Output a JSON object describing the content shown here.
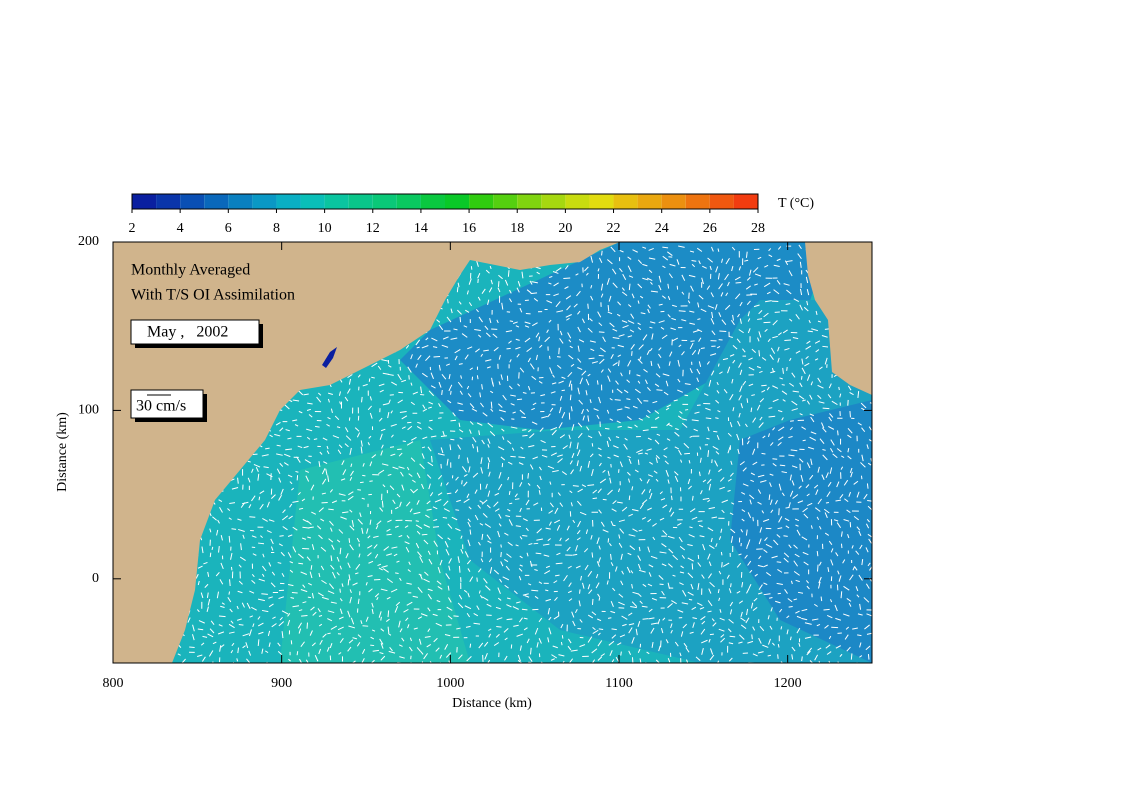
{
  "chart_data": {
    "type": "vector_map",
    "xlabel": "Distance (km)",
    "ylabel": "Distance (km)",
    "xlim": [
      800,
      1250
    ],
    "ylim": [
      -50,
      200
    ],
    "xticks": [
      800,
      900,
      1000,
      1100,
      1200
    ],
    "yticks": [
      0,
      100,
      200
    ],
    "annotations": [
      "Monthly Averaged",
      "With T/S OI Assimilation",
      "May ,   2002",
      "30 cm/s"
    ],
    "colorbar": {
      "label": "T (°C)",
      "levels": [
        2,
        3,
        4,
        5,
        6,
        7,
        8,
        9,
        10,
        11,
        12,
        13,
        14,
        15,
        16,
        17,
        18,
        19,
        20,
        21,
        22,
        23,
        24,
        25,
        26,
        27,
        28
      ],
      "ticks": [
        2,
        4,
        6,
        8,
        10,
        12,
        14,
        16,
        18,
        20,
        22,
        24,
        26,
        28
      ],
      "colors": [
        "#0a1fa0",
        "#0a35aa",
        "#0a4fb4",
        "#0a68bb",
        "#0a80c0",
        "#0a98c5",
        "#0aafc4",
        "#0abfb8",
        "#0ac5a0",
        "#0ac68a",
        "#0ac878",
        "#0ac860",
        "#0ac840",
        "#0ac828",
        "#30cc10",
        "#55d010",
        "#80d410",
        "#a6d810",
        "#c8dc10",
        "#e2dc10",
        "#e8c010",
        "#eaa810",
        "#ec9010",
        "#ee7410",
        "#f05810",
        "#f23c10"
      ]
    },
    "land_color": "#d0b48c"
  }
}
